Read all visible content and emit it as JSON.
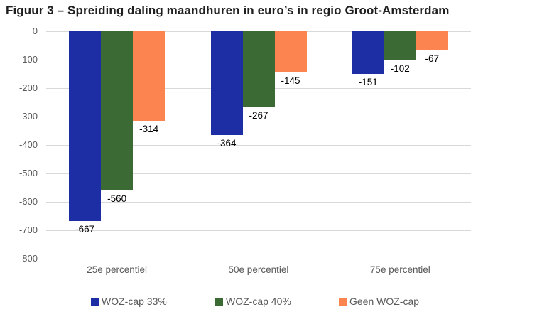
{
  "title": "Figuur 3 – Spreiding daling maandhuren in euro’s in regio Groot-Amsterdam",
  "chart_data": {
    "type": "bar",
    "title": "Figuur 3 – Spreiding daling maandhuren in euro’s in regio Groot-Amsterdam",
    "categories": [
      "25e percentiel",
      "50e percentiel",
      "75e percentiel"
    ],
    "series": [
      {
        "name": "WOZ-cap 33%",
        "color": "#1D2EA5",
        "values": [
          -667,
          -364,
          -151
        ]
      },
      {
        "name": "WOZ-cap 40%",
        "color": "#3B6A35",
        "values": [
          -560,
          -267,
          -102
        ]
      },
      {
        "name": "Geen WOZ-cap",
        "color": "#FC8450",
        "values": [
          -314,
          -145,
          -67
        ]
      }
    ],
    "xlabel": "",
    "ylabel": "",
    "ylim": [
      -800,
      0
    ],
    "yticks": [
      0,
      -100,
      -200,
      -300,
      -400,
      -500,
      -600,
      -700,
      -800
    ],
    "grid": true,
    "data_labels": true,
    "legend_position": "bottom"
  },
  "styles": {
    "background": "#FFFFFF",
    "title_color": "#1F1F1F",
    "grid_color": "#D9D9D9",
    "axis_text_color": "#595959",
    "data_label_color": "#000000"
  }
}
